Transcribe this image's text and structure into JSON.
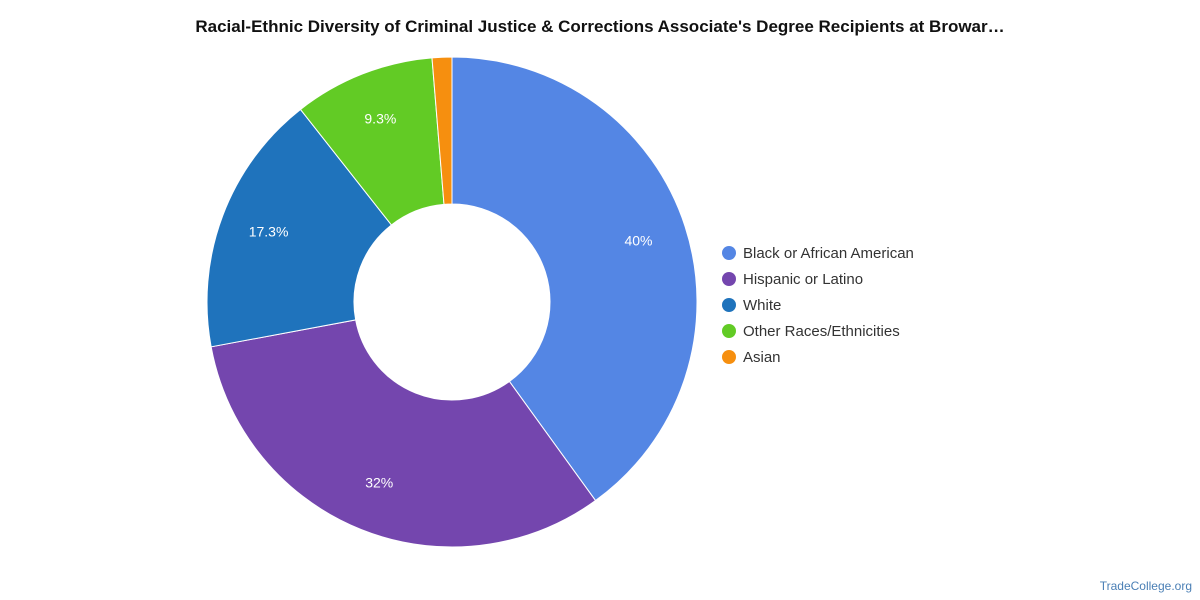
{
  "chart_data": {
    "type": "pie",
    "title": "Racial-Ethnic Diversity of Criminal Justice & Corrections Associate's Degree Recipients at Browar…",
    "series": [
      {
        "name": "Black or African American",
        "value": 40,
        "label": "40%",
        "color": "#5486e4"
      },
      {
        "name": "Hispanic or Latino",
        "value": 32,
        "label": "32%",
        "color": "#7446ae"
      },
      {
        "name": "White",
        "value": 17.3,
        "label": "17.3%",
        "color": "#1f73bc"
      },
      {
        "name": "Other Races/Ethnicities",
        "value": 9.3,
        "label": "9.3%",
        "color": "#62cb25"
      },
      {
        "name": "Asian",
        "value": 1.3,
        "label": "",
        "color": "#f68f0f"
      }
    ],
    "legend_position": "right"
  },
  "watermark": "TradeCollege.org"
}
